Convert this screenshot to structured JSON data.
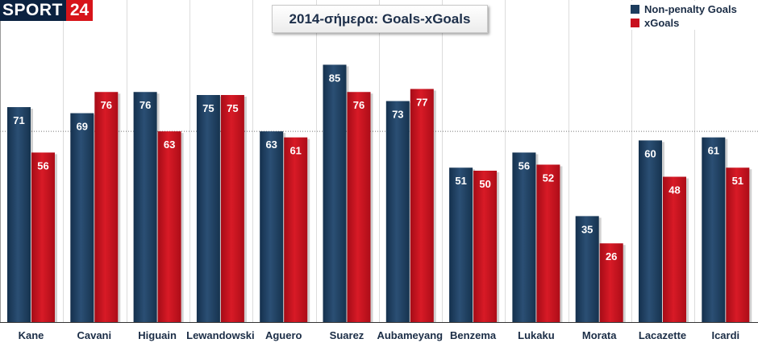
{
  "logo": {
    "word": "SPORT",
    "number": "24"
  },
  "colors": {
    "goals": "#1d3d5e",
    "xgoals": "#c8101e",
    "grid": "#dcdcdc",
    "text": "#1b2d46"
  },
  "chart_data": {
    "type": "bar",
    "title": "2014-σήμερα: Goals-xGoals",
    "xlabel": "",
    "ylabel": "",
    "ylim": [
      0,
      100
    ],
    "legend_position": "top-right",
    "categories": [
      "Kane",
      "Cavani",
      "Higuain",
      "Lewandowski",
      "Aguero",
      "Suarez",
      "Aubameyang",
      "Benzema",
      "Lukaku",
      "Morata",
      "Lacazette",
      "Icardi"
    ],
    "series": [
      {
        "name": "Non-penalty Goals",
        "values": [
          71,
          69,
          76,
          75,
          63,
          85,
          73,
          51,
          56,
          35,
          60,
          61
        ]
      },
      {
        "name": "xGoals",
        "values": [
          56,
          76,
          63,
          75,
          61,
          76,
          77,
          50,
          52,
          26,
          48,
          51
        ]
      }
    ]
  }
}
